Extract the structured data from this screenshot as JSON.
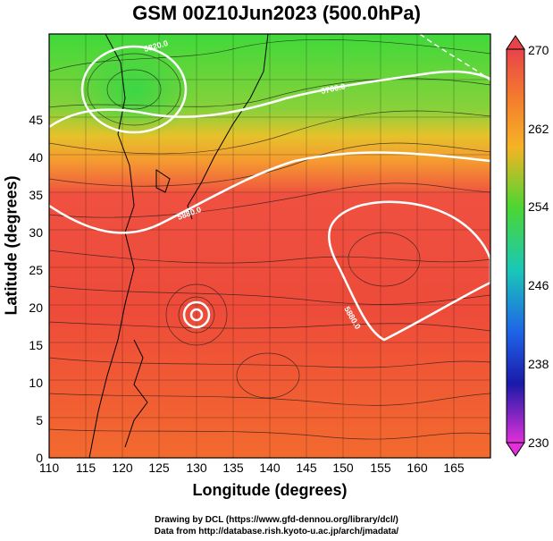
{
  "title": "GSM 00Z10Jun2023 (500.0hPa)",
  "x_axis": {
    "label": "Longitude (degrees)",
    "ticks": [
      "110",
      "115",
      "120",
      "125",
      "130",
      "135",
      "140",
      "145",
      "150",
      "155",
      "160",
      "165"
    ]
  },
  "y_axis": {
    "label": "Latitude  (degrees)",
    "ticks": [
      "0",
      "5",
      "10",
      "15",
      "20",
      "25",
      "30",
      "35",
      "40",
      "45"
    ]
  },
  "colorbar": {
    "ticks": [
      "270",
      "262",
      "254",
      "246",
      "238",
      "230"
    ],
    "colors": [
      "#e8434a",
      "#f47a2e",
      "#f5b326",
      "#4dd631",
      "#1ac8b6",
      "#1f63e8",
      "#1a1aa8",
      "#e030d8"
    ]
  },
  "contour_labels": [
    "5880.0",
    "5820.0",
    "5760.0",
    "5880.0",
    "5880.0"
  ],
  "credits": {
    "line1": "Drawing by DCL (https://www.gfd-dennou.org/library/dcl/)",
    "line2": "Data from http://database.rish.kyoto-u.ac.jp/arch/jmadata/"
  }
}
